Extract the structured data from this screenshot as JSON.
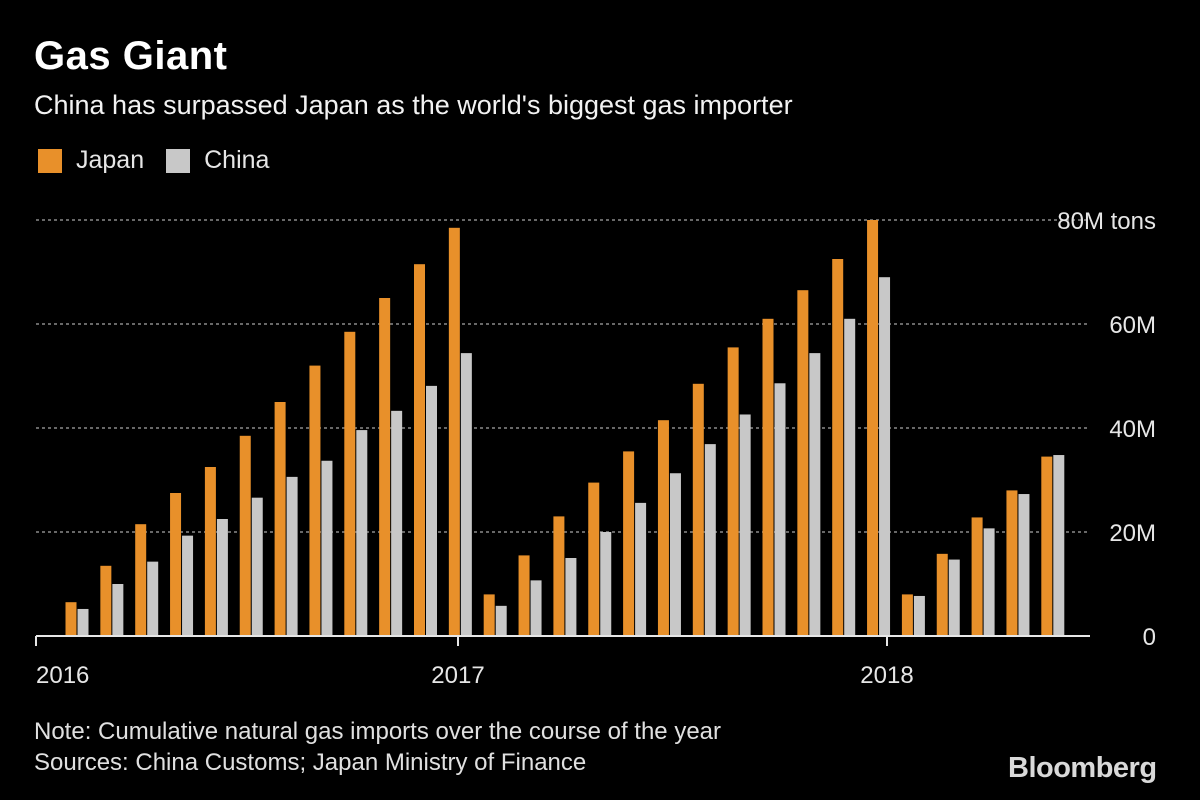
{
  "chart_data": {
    "type": "bar",
    "title": "Gas Giant",
    "subtitle": "China has surpassed Japan as the world's biggest gas importer",
    "unit_label": "80M tons",
    "y_ticks": [
      "0",
      "20M",
      "40M",
      "60M",
      "80M tons"
    ],
    "y_tick_values": [
      0,
      20,
      40,
      60,
      80
    ],
    "ylim": [
      0,
      80
    ],
    "x_ticks": [
      "2016",
      "2017",
      "2018"
    ],
    "grid": true,
    "legend_position": "top-left",
    "categories": [
      "2016-01",
      "2016-02",
      "2016-03",
      "2016-04",
      "2016-05",
      "2016-06",
      "2016-07",
      "2016-08",
      "2016-09",
      "2016-10",
      "2016-11",
      "2016-12",
      "2017-01",
      "2017-02",
      "2017-03",
      "2017-04",
      "2017-05",
      "2017-06",
      "2017-07",
      "2017-08",
      "2017-09",
      "2017-10",
      "2017-11",
      "2017-12",
      "2018-01",
      "2018-02",
      "2018-03",
      "2018-04",
      "2018-05"
    ],
    "series": [
      {
        "name": "Japan",
        "color": "#e8902a",
        "values": [
          6.5,
          13.5,
          21.5,
          27.5,
          32.5,
          38.5,
          45,
          52,
          58.5,
          65,
          71.5,
          78.5,
          8,
          15.5,
          23,
          29.5,
          35.5,
          41.5,
          48.5,
          55.5,
          61,
          66.5,
          72.5,
          80,
          8,
          15.8,
          22.8,
          28,
          34.5
        ]
      },
      {
        "name": "China",
        "color": "#c8c8c8",
        "values": [
          5.2,
          10,
          14.3,
          19.3,
          22.5,
          26.6,
          30.6,
          33.7,
          39.6,
          43.3,
          48.1,
          54.4,
          5.8,
          10.7,
          15,
          20,
          25.6,
          31.3,
          36.9,
          42.6,
          48.6,
          54.4,
          61,
          69,
          7.7,
          14.7,
          20.7,
          27.3,
          34.8
        ]
      }
    ]
  },
  "note": "Note: Cumulative natural gas imports over the course of the year",
  "sources": "Sources: China Customs; Japan Ministry of Finance",
  "logo": "Bloomberg"
}
